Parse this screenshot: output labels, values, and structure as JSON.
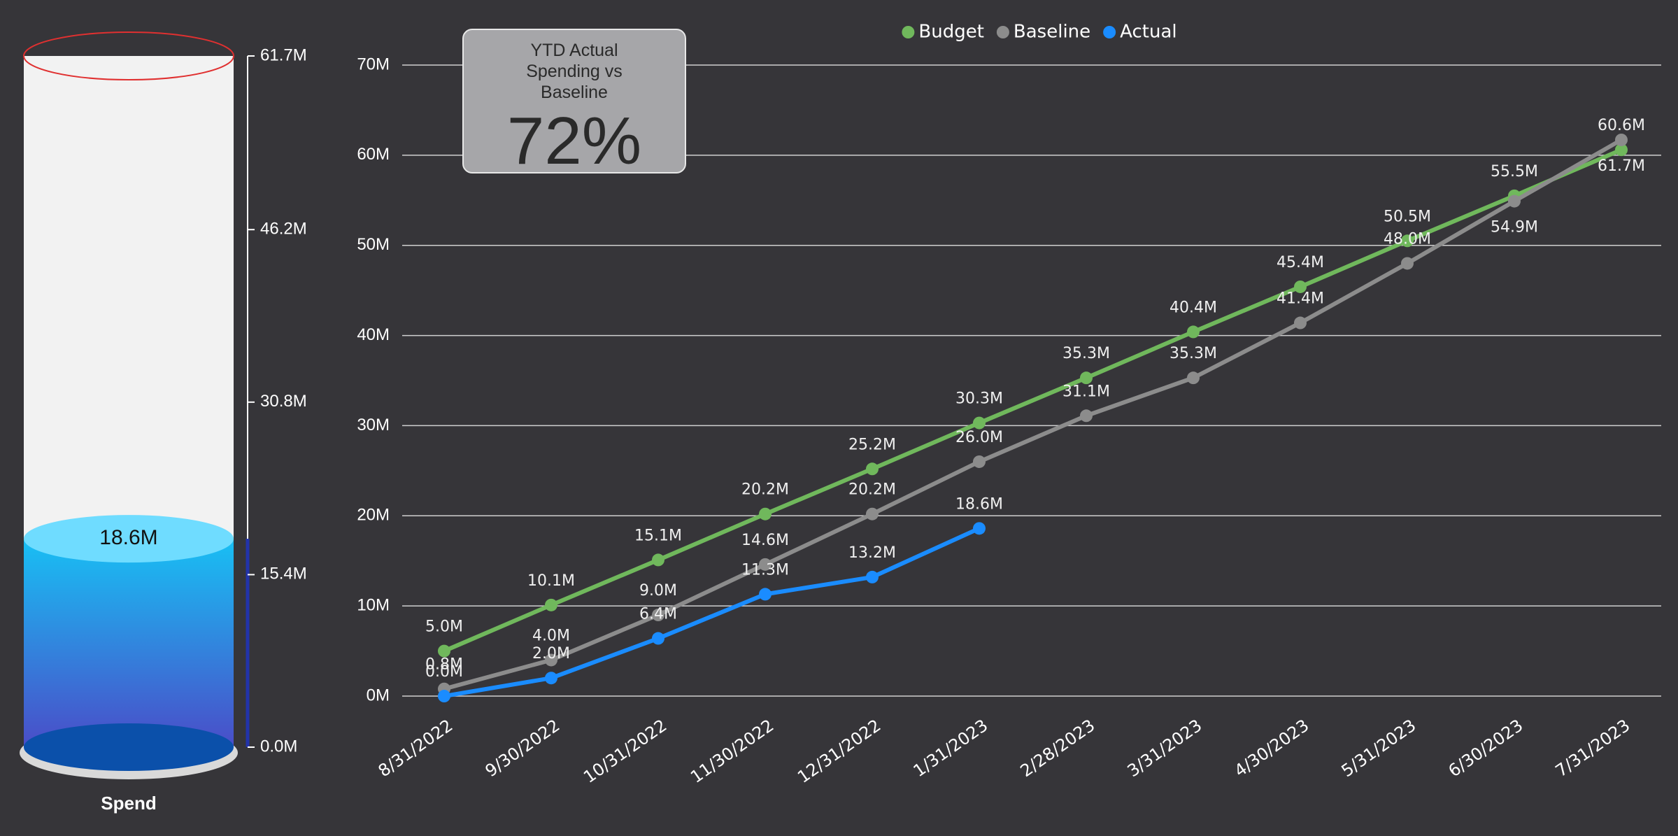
{
  "chart_data": [
    {
      "type": "cylinder",
      "title": "Spend",
      "values": [
        18.6
      ],
      "value_labels": [
        "18.6M"
      ],
      "ylim": [
        0,
        61.7
      ],
      "yticks": [
        {
          "value": 0,
          "label": "0.0M"
        },
        {
          "value": 15.4,
          "label": "15.4M"
        },
        {
          "value": 30.8,
          "label": "30.8M"
        },
        {
          "value": 46.2,
          "label": "46.2M"
        },
        {
          "value": 61.7,
          "label": "61.7M"
        }
      ],
      "color": "#1ab8f0"
    },
    {
      "type": "card",
      "title": "YTD Actual Spending vs Baseline",
      "values": [
        72
      ],
      "value_labels": [
        "72%"
      ]
    },
    {
      "type": "line",
      "categories": [
        "8/31/2022",
        "9/30/2022",
        "10/31/2022",
        "11/30/2022",
        "12/31/2022",
        "1/31/2023",
        "2/28/2023",
        "3/31/2023",
        "4/30/2023",
        "5/31/2023",
        "6/30/2023",
        "7/31/2023"
      ],
      "series": [
        {
          "name": "Budget",
          "color": "#70b85c",
          "values": [
            5.0,
            10.1,
            15.1,
            20.2,
            25.2,
            30.3,
            35.3,
            40.4,
            45.4,
            50.5,
            55.5,
            60.6
          ],
          "value_labels": [
            "5.0M",
            "10.1M",
            "15.1M",
            "20.2M",
            "25.2M",
            "30.3M",
            "35.3M",
            "40.4M",
            "45.4M",
            "50.5M",
            "55.5M",
            "60.6M"
          ]
        },
        {
          "name": "Baseline",
          "color": "#8c8c8c",
          "values": [
            0.8,
            4.0,
            9.0,
            14.6,
            20.2,
            26.0,
            31.1,
            35.3,
            41.4,
            48.0,
            54.9,
            61.7
          ],
          "value_labels": [
            "0.8M",
            "4.0M",
            "9.0M",
            "14.6M",
            "20.2M",
            "26.0M",
            "31.1M",
            "35.3M",
            "41.4M",
            "48.0M",
            "54.9M",
            "61.7M"
          ]
        },
        {
          "name": "Actual",
          "color": "#1a8cff",
          "values": [
            0.0,
            2.0,
            6.4,
            11.3,
            13.2,
            18.6,
            null,
            null,
            null,
            null,
            null,
            null
          ],
          "value_labels": [
            "0.0M",
            "2.0M",
            "6.4M",
            "11.3M",
            "13.2M",
            "18.6M",
            null,
            null,
            null,
            null,
            null,
            null
          ]
        }
      ],
      "ylim": [
        0,
        70
      ],
      "yticks": [
        {
          "value": 0,
          "label": "0M"
        },
        {
          "value": 10,
          "label": "10M"
        },
        {
          "value": 20,
          "label": "20M"
        },
        {
          "value": 30,
          "label": "30M"
        },
        {
          "value": 40,
          "label": "40M"
        },
        {
          "value": 50,
          "label": "50M"
        },
        {
          "value": 60,
          "label": "60M"
        },
        {
          "value": 70,
          "label": "70M"
        }
      ],
      "grid": true,
      "legend": "top"
    }
  ]
}
